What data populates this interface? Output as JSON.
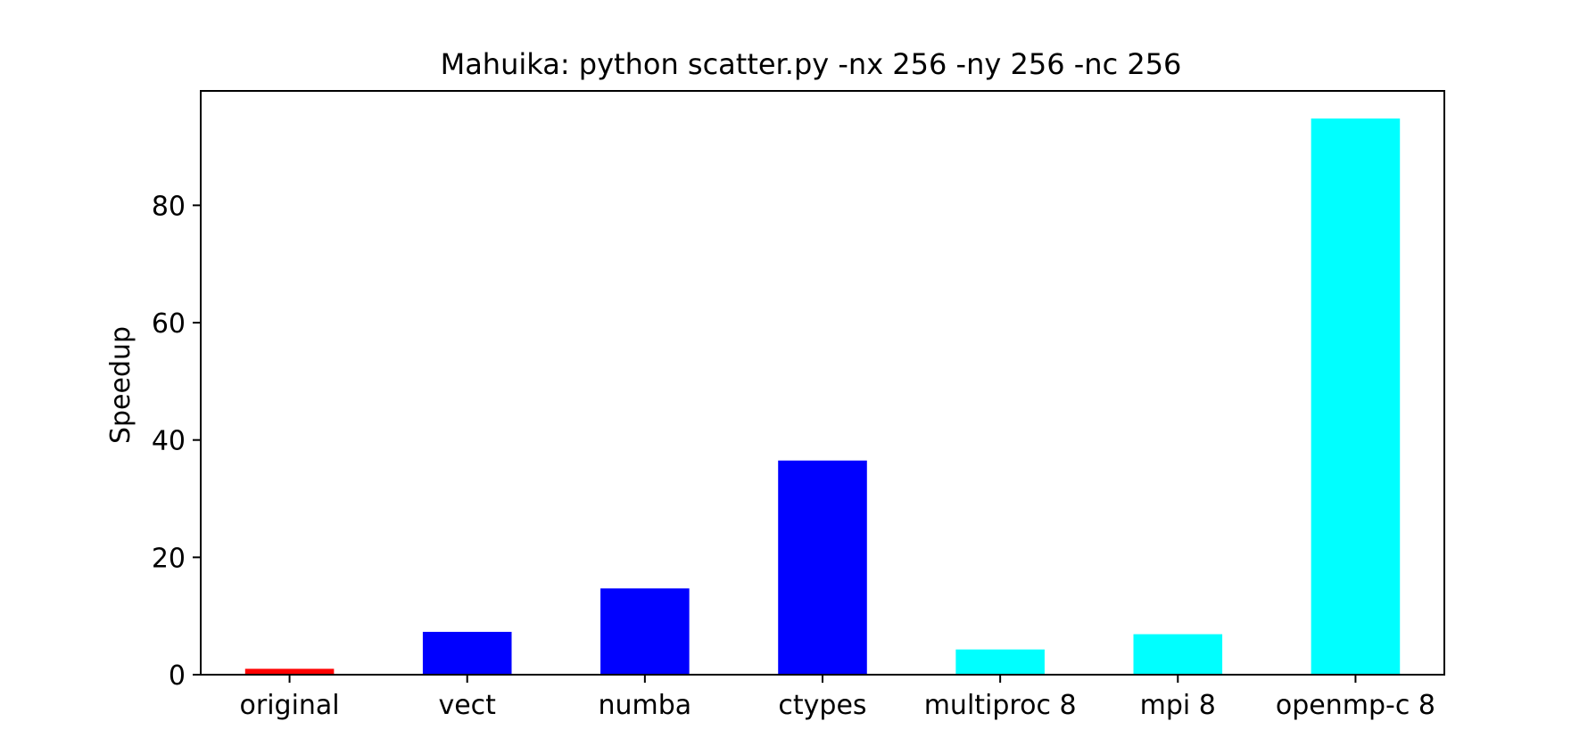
{
  "chart_data": {
    "type": "bar",
    "title": "Mahuika: python scatter.py -nx 256 -ny 256 -nc 256",
    "xlabel": "",
    "ylabel": "Speedup",
    "categories": [
      "original",
      "vect",
      "numba",
      "ctypes",
      "multiproc 8",
      "mpi 8",
      "openmp-c 8"
    ],
    "values": [
      1.0,
      7.3,
      14.7,
      36.5,
      4.3,
      6.9,
      94.8
    ],
    "colors": [
      "#ff0000",
      "#0000ff",
      "#0000ff",
      "#0000ff",
      "#00ffff",
      "#00ffff",
      "#00ffff"
    ],
    "ylim": [
      0,
      99.5
    ],
    "yticks": [
      0,
      20,
      40,
      60,
      80
    ],
    "grid": false
  }
}
